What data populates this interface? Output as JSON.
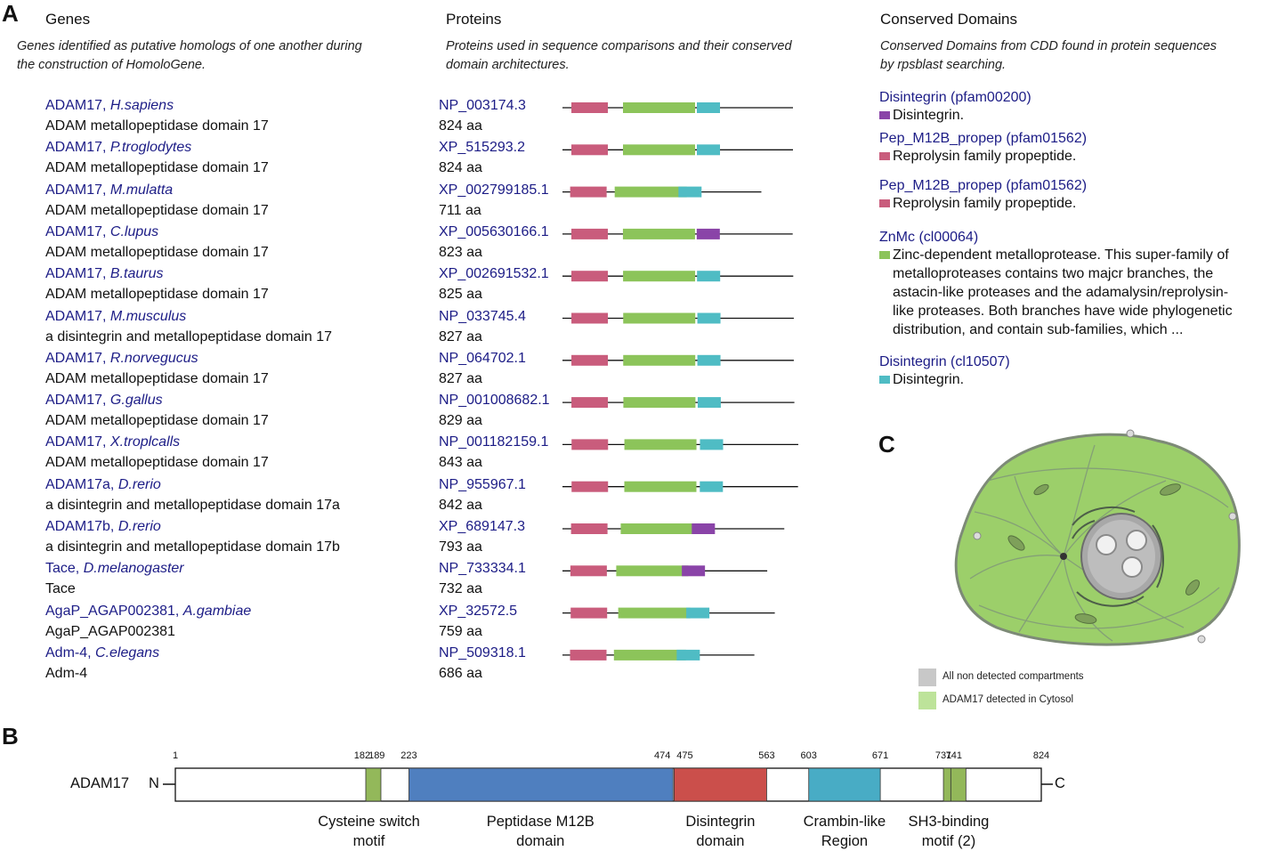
{
  "panels": {
    "a": "A",
    "b": "B",
    "c": "C"
  },
  "genes": {
    "title": "Genes",
    "description_lines": [
      "Genes identified as putative homologs of one another during",
      "the construction of HomoloGene."
    ],
    "items": [
      {
        "symbol": "ADAM17, ",
        "species": "H.sapiens",
        "desc": "ADAM metallopeptidase domain 17"
      },
      {
        "symbol": "ADAM17, ",
        "species": "P.troglodytes",
        "desc": "ADAM metallopeptidase domain 17"
      },
      {
        "symbol": "ADAM17, ",
        "species": "M.mulatta",
        "desc": "ADAM metallopeptidase domain 17"
      },
      {
        "symbol": "ADAM17, ",
        "species": "C.lupus",
        "desc": "ADAM metallopeptidase domain 17"
      },
      {
        "symbol": "ADAM17, ",
        "species": "B.taurus",
        "desc": "ADAM metallopeptidase domain 17"
      },
      {
        "symbol": "ADAM17, ",
        "species": "M.musculus",
        "desc": "a disintegrin and metallopeptidase domain 17"
      },
      {
        "symbol": "ADAM17, ",
        "species": "R.norvegucus",
        "desc": "ADAM metallopeptidase domain 17"
      },
      {
        "symbol": "ADAM17, ",
        "species": "G.gallus",
        "desc": "ADAM metallopeptidase domain 17"
      },
      {
        "symbol": "ADAM17, ",
        "species": "X.troplcalls",
        "desc": "ADAM metallopeptidase domain 17"
      },
      {
        "symbol": "ADAM17a, ",
        "species": "D.rerio",
        "desc": "a disintegrin and metallopeptidase domain 17a"
      },
      {
        "symbol": "ADAM17b, ",
        "species": "D.rerio",
        "desc": "a disintegrin and metallopeptidase domain 17b"
      },
      {
        "symbol": "Tace, ",
        "species": "D.melanogaster",
        "desc": "Tace"
      },
      {
        "symbol": "AgaP_AGAP002381, ",
        "species": "A.gambiae",
        "desc": "AgaP_AGAP002381"
      },
      {
        "symbol": "Adm-4, ",
        "species": "C.elegans",
        "desc": "Adm-4"
      }
    ]
  },
  "proteins": {
    "title": "Proteins",
    "description_lines": [
      "Proteins used in sequence comparisons and their conserved",
      "domain architectures."
    ],
    "items": [
      {
        "acc": "NP_003174.3",
        "length": "824 aa",
        "aa": 824,
        "domains": [
          "propep",
          "znmc",
          "disint-cl"
        ]
      },
      {
        "acc": "XP_515293.2",
        "length": "824 aa",
        "aa": 824,
        "domains": [
          "propep",
          "znmc",
          "disint-cl"
        ]
      },
      {
        "acc": "XP_002799185.1",
        "length": "711 aa",
        "aa": 711,
        "domains": [
          "propep",
          "znmc",
          "disint-cl"
        ]
      },
      {
        "acc": "XP_005630166.1",
        "length": "823 aa",
        "aa": 823,
        "domains": [
          "propep",
          "znmc",
          "disint-pf"
        ]
      },
      {
        "acc": "XP_002691532.1",
        "length": "825 aa",
        "aa": 825,
        "domains": [
          "propep",
          "znmc",
          "disint-cl"
        ]
      },
      {
        "acc": "NP_033745.4",
        "length": "827 aa",
        "aa": 827,
        "domains": [
          "propep",
          "znmc",
          "disint-cl"
        ]
      },
      {
        "acc": "NP_064702.1",
        "length": "827 aa",
        "aa": 827,
        "domains": [
          "propep",
          "znmc",
          "disint-cl"
        ]
      },
      {
        "acc": "NP_001008682.1",
        "length": "829 aa",
        "aa": 829,
        "domains": [
          "propep",
          "znmc",
          "disint-cl"
        ]
      },
      {
        "acc": "NP_001182159.1",
        "length": "843 aa",
        "aa": 843,
        "domains": [
          "propep",
          "znmc",
          "disint-cl"
        ]
      },
      {
        "acc": "NP_955967.1",
        "length": "842 aa",
        "aa": 842,
        "domains": [
          "propep",
          "znmc",
          "disint-cl"
        ]
      },
      {
        "acc": "XP_689147.3",
        "length": "793 aa",
        "aa": 793,
        "domains": [
          "propep",
          "znmc",
          "disint-pf"
        ]
      },
      {
        "acc": "NP_733334.1",
        "length": "732 aa",
        "aa": 732,
        "domains": [
          "propep",
          "znmc",
          "disint-pf"
        ]
      },
      {
        "acc": "XP_32572.5",
        "length": "759 aa",
        "aa": 759,
        "domains": [
          "propep",
          "znmc",
          "disint-cl"
        ]
      },
      {
        "acc": "NP_509318.1",
        "length": "686 aa",
        "aa": 686,
        "domains": [
          "propep",
          "znmc",
          "disint-cl"
        ]
      }
    ]
  },
  "domains": {
    "title": "Conserved Domains",
    "description_lines": [
      "Conserved Domains from CDD found in protein sequences",
      "by rpsblast searching."
    ],
    "items": [
      {
        "name": "Disintegrin (pfam00200)",
        "color": "#8a44a8",
        "lines": [
          "Disintegrin."
        ]
      },
      {
        "name": "Pep_M12B_propep (pfam01562)",
        "color": "#c95c7c",
        "lines": [
          "Reprolysin family propeptide."
        ]
      },
      {
        "name": "Pep_M12B_propep (pfam01562)",
        "color": "#c95c7c",
        "lines": [
          "Reprolysin family propeptide."
        ]
      },
      {
        "name": "ZnMc (cl00064)",
        "color": "#8cc45a",
        "lines": [
          "Zinc-dependent metalloprotease. This super-family of",
          "metalloproteases contains two majcr branches, the",
          "astacin-like proteases and the adamalysin/reprolysin-",
          "like proteases. Both branches have wide phylogenetic",
          "distribution, and contain sub-families, which ..."
        ]
      },
      {
        "name": "Disintegrin (cl10507)",
        "color": "#4fbcc4",
        "lines": [
          "Disintegrin."
        ]
      }
    ]
  },
  "domain_colors": {
    "propep": "#c95c7c",
    "znmc": "#8cc45a",
    "disint-cl": "#4fbcc4",
    "disint-pf": "#8a44a8"
  },
  "cell": {
    "legend": [
      {
        "label": "All non detected compartments",
        "color": "#c8c8c8"
      },
      {
        "label": "ADAM17 detected in Cytosol",
        "color": "#bde39a"
      }
    ]
  },
  "schematic": {
    "protein": "ADAM17",
    "n_term": "N",
    "c_term": "C",
    "length": 824,
    "positions": [
      {
        "text": "1",
        "value": 1
      },
      {
        "text": "182",
        "value": 182
      },
      {
        "text": "189",
        "value": 189
      },
      {
        "text": "223",
        "value": 223
      },
      {
        "text": "474",
        "value": 474
      },
      {
        "text": "475",
        "value": 475
      },
      {
        "text": "563",
        "value": 563
      },
      {
        "text": "603",
        "value": 603
      },
      {
        "text": "671",
        "value": 671
      },
      {
        "text": "731",
        "value": 731
      },
      {
        "text": "741",
        "value": 741
      },
      {
        "text": "824",
        "value": 824
      }
    ],
    "segments": [
      {
        "name": "cysteine-switch",
        "start": 182,
        "end": 189,
        "color": "#93b85a"
      },
      {
        "name": "peptidase-m12b",
        "start": 223,
        "end": 474,
        "color": "#4f7fbf"
      },
      {
        "name": "disintegrin",
        "start": 475,
        "end": 563,
        "color": "#cb4f4b"
      },
      {
        "name": "crambin-like",
        "start": 603,
        "end": 671,
        "color": "#48acc5"
      },
      {
        "name": "sh3-binding-1",
        "start": 731,
        "end": 734,
        "color": "#93b85a"
      },
      {
        "name": "sh3-binding-2",
        "start": 738,
        "end": 741,
        "color": "#93b85a"
      }
    ],
    "labels": [
      {
        "lines": [
          "Cysteine switch",
          "motif"
        ],
        "center": 185
      },
      {
        "lines": [
          "Peptidase M12B",
          "domain"
        ],
        "center": 348
      },
      {
        "lines": [
          "Disintegrin",
          "domain"
        ],
        "center": 519
      },
      {
        "lines": [
          "Crambin-like",
          "Region"
        ],
        "center": 637
      },
      {
        "lines": [
          "SH3-binding",
          "motif (2)"
        ],
        "center": 736
      }
    ]
  }
}
